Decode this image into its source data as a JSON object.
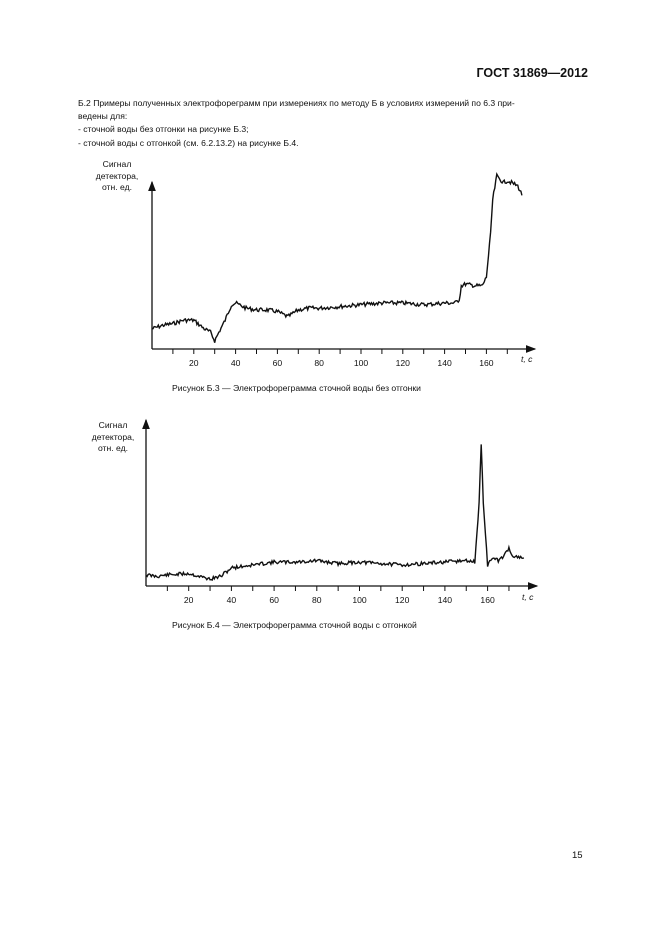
{
  "header": {
    "doc_id": "ГОСТ 31869—2012"
  },
  "paragraph": {
    "line1": "Б.2  Примеры полученных электрофореграмм при измерениях по методу Б в условиях измерений по 6.3 при-",
    "line2": "ведены для:",
    "item1": "- сточной воды без отгонки на рисунке Б.3;",
    "item2": "- сточной воды с отгонкой (см. 6.2.13.2) на рисунке Б.4."
  },
  "figures": [
    {
      "ylabel_lines": [
        "Сигнал",
        "детектора,",
        "отн. ед."
      ],
      "xlabel": "t, c",
      "caption": "Рисунок Б.3 — Электрофореграмма сточной воды без отгонки"
    },
    {
      "ylabel_lines": [
        "Сигнал",
        "детектора,",
        "отн. ед."
      ],
      "xlabel": "t, c",
      "caption": "Рисунок Б.4 — Электрофореграмма сточной воды с отгонкой"
    }
  ],
  "page_number": "15",
  "chart_data": [
    {
      "type": "line",
      "title": "Рисунок Б.3 — Электрофореграмма сточной воды без отгонки",
      "xlabel": "t, c",
      "ylabel": "Сигнал детектора, отн. ед.",
      "x_ticks": [
        20,
        40,
        60,
        80,
        100,
        120,
        140,
        160
      ],
      "xlim": [
        0,
        178
      ],
      "grid": false,
      "y_ticks": [],
      "x": [
        0,
        5,
        10,
        15,
        20,
        25,
        28,
        30,
        32,
        35,
        38,
        40,
        45,
        50,
        55,
        60,
        65,
        70,
        75,
        80,
        90,
        100,
        110,
        120,
        130,
        140,
        145,
        147,
        148,
        150,
        155,
        158,
        160,
        162,
        163,
        165,
        168,
        170,
        172,
        175,
        177
      ],
      "values": [
        0.1,
        0.12,
        0.13,
        0.15,
        0.15,
        0.1,
        0.08,
        0.03,
        0.08,
        0.15,
        0.24,
        0.25,
        0.22,
        0.21,
        0.21,
        0.2,
        0.17,
        0.21,
        0.22,
        0.22,
        0.23,
        0.24,
        0.25,
        0.25,
        0.24,
        0.25,
        0.25,
        0.27,
        0.35,
        0.36,
        0.35,
        0.35,
        0.4,
        0.65,
        0.85,
        0.99,
        0.95,
        0.96,
        0.95,
        0.93,
        0.88
      ],
      "annotations": [
        "Step increase near 147 s; large rise to plateau near 160–165 s"
      ]
    },
    {
      "type": "line",
      "title": "Рисунок Б.4 — Электрофореграмма сточной воды с отгонкой",
      "xlabel": "t, c",
      "ylabel": "Сигнал детектора, отн. ед.",
      "x_ticks": [
        20,
        40,
        60,
        80,
        100,
        120,
        140,
        160
      ],
      "xlim": [
        0,
        178
      ],
      "grid": false,
      "y_ticks": [],
      "x": [
        0,
        5,
        10,
        20,
        30,
        35,
        40,
        50,
        60,
        70,
        80,
        90,
        100,
        110,
        120,
        130,
        140,
        150,
        154,
        156,
        157,
        158,
        160,
        162,
        165,
        168,
        170,
        172,
        175,
        177
      ],
      "values": [
        0.05,
        0.04,
        0.05,
        0.06,
        0.02,
        0.04,
        0.1,
        0.12,
        0.14,
        0.14,
        0.15,
        0.13,
        0.14,
        0.13,
        0.12,
        0.13,
        0.14,
        0.15,
        0.14,
        0.55,
        0.98,
        0.55,
        0.12,
        0.17,
        0.15,
        0.19,
        0.24,
        0.18,
        0.17,
        0.17
      ],
      "annotations": [
        "Single sharp peak at ~157 s"
      ]
    }
  ]
}
